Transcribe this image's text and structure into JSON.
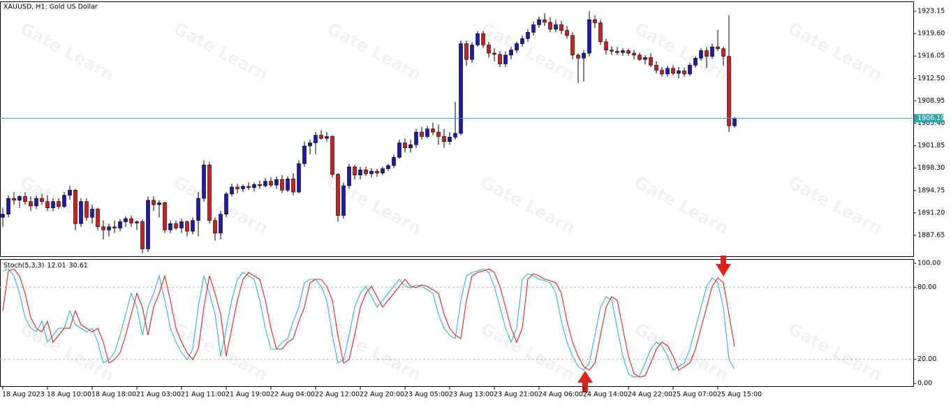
{
  "chart_data": [
    {
      "type": "candlestick",
      "title": "XAUUSD, H1:  Gold US Dollar",
      "watermark": "Gate Learn",
      "categories": [
        "18 Aug 2023",
        null,
        null,
        null,
        null,
        null,
        null,
        null,
        "18 Aug 10:00",
        null,
        null,
        null,
        null,
        null,
        null,
        null,
        "18 Aug 18:00",
        null,
        null,
        null,
        null,
        null,
        null,
        null,
        "21 Aug 03:00",
        null,
        null,
        null,
        null,
        null,
        null,
        null,
        "21 Aug 11:00",
        null,
        null,
        null,
        null,
        null,
        null,
        null,
        "21 Aug 19:00",
        null,
        null,
        null,
        null,
        null,
        null,
        null,
        "22 Aug 04:00",
        null,
        null,
        null,
        null,
        null,
        null,
        null,
        "22 Aug 12:00",
        null,
        null,
        null,
        null,
        null,
        null,
        null,
        "22 Aug 20:00",
        null,
        null,
        null,
        null,
        null,
        null,
        null,
        "23 Aug 05:00",
        null,
        null,
        null,
        null,
        null,
        null,
        null,
        "23 Aug 13:00",
        null,
        null,
        null,
        null,
        null,
        null,
        null,
        "23 Aug 21:00",
        null,
        null,
        null,
        null,
        null,
        null,
        null,
        "24 Aug 06:00",
        null,
        null,
        null,
        null,
        null,
        null,
        null,
        "24 Aug 14:00",
        null,
        null,
        null,
        null,
        null,
        null,
        null,
        "24 Aug 22:00",
        null,
        null,
        null,
        null,
        null,
        null,
        null,
        "25 Aug 07:00",
        null,
        null,
        null,
        null,
        null,
        null,
        null,
        "25 Aug 15:00",
        null,
        null,
        null
      ],
      "open": [
        1890.5,
        1891,
        1893.5,
        1893.2,
        1893.8,
        1893,
        1892.3,
        1893.5,
        1893,
        1892,
        1893,
        1892.2,
        1894,
        1894.8,
        1889.5,
        1893,
        1890.5,
        1891.8,
        1889,
        1888.5,
        1889,
        1888.8,
        1889.8,
        1890.3,
        1889.6,
        1889.8,
        1885.5,
        1893.2,
        1892.5,
        1892.8,
        1888.5,
        1889.5,
        1888.8,
        1889.8,
        1888.3,
        1890,
        1893.5,
        1898.8,
        1890,
        1888,
        1891,
        1894.2,
        1895.3,
        1895,
        1895.4,
        1895.2,
        1895.7,
        1895.5,
        1896.2,
        1895.6,
        1896.5,
        1894.8,
        1896.6,
        1894.5,
        1899,
        1901.8,
        1902.3,
        1903.5,
        1903,
        1903.3,
        1897.3,
        1890.8,
        1895.5,
        1898.5,
        1897.2,
        1898,
        1897.4,
        1897.8,
        1897.5,
        1898.2,
        1898.7,
        1900,
        1902.3,
        1901.5,
        1902,
        1904,
        1903.3,
        1904.5,
        1904,
        1903.3,
        1902.5,
        1903.2,
        1903.8,
        1918,
        1915.5,
        1917.8,
        1919.6,
        1917.8,
        1916.5,
        1916.3,
        1914.8,
        1916.2,
        1917,
        1918,
        1918.8,
        1919.8,
        1921,
        1921.8,
        1921.4,
        1920.3,
        1921,
        1920.1,
        1919.3,
        1916.2,
        1915.7,
        1916.5,
        1921.8,
        1921.3,
        1918.3,
        1917,
        1916.8,
        1916.6,
        1916.9,
        1916.5,
        1916.2,
        1915.5,
        1915.8,
        1914.6,
        1913.8,
        1913.2,
        1914.1,
        1913.3,
        1913.7,
        1913.2,
        1914.6,
        1915.7,
        1916.9,
        1916,
        1917.5,
        1917.2,
        1916,
        1905
      ],
      "high": [
        1892,
        1894,
        1894.5,
        1894,
        1894.5,
        1893.8,
        1894,
        1894.2,
        1894,
        1893.5,
        1893.5,
        1894.5,
        1895.5,
        1895,
        1893.5,
        1893.5,
        1892.5,
        1892,
        1890,
        1889.5,
        1890,
        1890.2,
        1890.7,
        1890.8,
        1890,
        1890.2,
        1893.8,
        1893.8,
        1893.2,
        1893,
        1890,
        1890,
        1890.3,
        1890,
        1890.5,
        1894.5,
        1899.5,
        1899.3,
        1890.5,
        1891.5,
        1894.5,
        1895.8,
        1895.8,
        1895.7,
        1896,
        1896,
        1896.3,
        1896.7,
        1896.8,
        1897,
        1897.2,
        1897,
        1897.5,
        1899.5,
        1902.5,
        1902.8,
        1904,
        1904.3,
        1904,
        1903.5,
        1897.5,
        1896,
        1899,
        1898.8,
        1898.5,
        1898.5,
        1898.3,
        1898.2,
        1898.5,
        1899,
        1900.5,
        1902.8,
        1903,
        1902.8,
        1904.5,
        1904.8,
        1905,
        1905.5,
        1905.2,
        1904.5,
        1904,
        1908.8,
        1918.5,
        1918.5,
        1918.3,
        1920,
        1920,
        1918.3,
        1917.3,
        1916.8,
        1916.8,
        1917.5,
        1918.3,
        1919.3,
        1920.3,
        1921.5,
        1922.3,
        1922.8,
        1922.2,
        1921.8,
        1921.6,
        1920.8,
        1919.8,
        1916.5,
        1917,
        1923.2,
        1922.5,
        1921.8,
        1918.8,
        1917.6,
        1917.5,
        1917.3,
        1917.2,
        1917,
        1916.6,
        1916.2,
        1916.5,
        1915.2,
        1914.3,
        1914.5,
        1914.6,
        1914.3,
        1914.2,
        1915,
        1916,
        1917.3,
        1917.5,
        1918,
        1920.2,
        1917.5,
        1922.5,
        1906.4
      ],
      "low": [
        1889,
        1890.5,
        1892.5,
        1892,
        1892.5,
        1891.5,
        1891.8,
        1892.5,
        1891.5,
        1891.5,
        1891.8,
        1892,
        1893.3,
        1888.5,
        1889,
        1890,
        1889.5,
        1888.5,
        1887,
        1887.5,
        1888,
        1888.3,
        1889,
        1889,
        1888.5,
        1884.8,
        1885,
        1891.5,
        1890.5,
        1888,
        1888,
        1888.5,
        1888,
        1887.5,
        1887.8,
        1887.5,
        1893,
        1889.5,
        1886.8,
        1887,
        1890.5,
        1893.8,
        1894.3,
        1894.5,
        1894.8,
        1894.6,
        1895,
        1895.2,
        1895.3,
        1895,
        1894.3,
        1894.5,
        1894,
        1894.3,
        1898.5,
        1900.5,
        1900.5,
        1902.8,
        1902.5,
        1896.8,
        1889.8,
        1890.3,
        1895,
        1896.5,
        1896.5,
        1897,
        1896.8,
        1896.9,
        1897.2,
        1897.8,
        1898.3,
        1899.8,
        1900.8,
        1900.8,
        1901.5,
        1902.8,
        1903,
        1903.5,
        1902,
        1901.5,
        1902,
        1902.8,
        1903.5,
        1914.5,
        1915,
        1917.5,
        1917.3,
        1915.8,
        1915.2,
        1914.3,
        1914.3,
        1915.5,
        1916.5,
        1917.5,
        1918.3,
        1919.3,
        1920.5,
        1920.8,
        1919.8,
        1919.8,
        1919.5,
        1918.8,
        1915.5,
        1911.8,
        1912,
        1916,
        1920.5,
        1917.8,
        1916.3,
        1916.2,
        1916.2,
        1916.1,
        1916.1,
        1915.5,
        1915.3,
        1914.7,
        1914.3,
        1913.3,
        1912.8,
        1912.8,
        1913,
        1912.5,
        1912.8,
        1912.9,
        1914.2,
        1915.3,
        1914.2,
        1915.6,
        1916.8,
        1914.5,
        1904,
        1904.7
      ],
      "close": [
        1891,
        1893.5,
        1893.2,
        1893.8,
        1893,
        1892.3,
        1893.5,
        1893,
        1892,
        1893,
        1892.2,
        1894,
        1894.8,
        1889.5,
        1893,
        1890.5,
        1891.8,
        1889,
        1888.5,
        1889,
        1888.8,
        1889.8,
        1890.3,
        1889.6,
        1889.8,
        1885.5,
        1893.2,
        1892.5,
        1892.8,
        1888.5,
        1889.5,
        1888.8,
        1889.8,
        1888.3,
        1890,
        1893.5,
        1898.8,
        1890,
        1888,
        1891,
        1894.2,
        1895.3,
        1895,
        1895.4,
        1895.2,
        1895.7,
        1895.5,
        1896.2,
        1895.6,
        1896.5,
        1894.8,
        1896.6,
        1894.5,
        1899,
        1901.8,
        1902.3,
        1903.5,
        1903,
        1903.3,
        1897.3,
        1890.8,
        1895.5,
        1898.5,
        1897.2,
        1898,
        1897.4,
        1897.8,
        1897.5,
        1898.2,
        1898.7,
        1900,
        1902.3,
        1901.5,
        1902,
        1904,
        1903.3,
        1904.5,
        1904,
        1903.3,
        1902.5,
        1903.2,
        1903.8,
        1918,
        1915.5,
        1917.8,
        1919.6,
        1917.8,
        1916.5,
        1916.3,
        1914.8,
        1916.2,
        1917,
        1918,
        1918.8,
        1919.8,
        1921,
        1921.8,
        1921.4,
        1920.3,
        1921,
        1920.1,
        1919.3,
        1916.2,
        1915.7,
        1916.5,
        1921.8,
        1921.3,
        1918.3,
        1917,
        1916.8,
        1916.6,
        1916.9,
        1916.5,
        1916.2,
        1915.5,
        1915.8,
        1914.6,
        1913.8,
        1913.2,
        1914.1,
        1913.3,
        1913.7,
        1913.2,
        1914.6,
        1915.7,
        1916.9,
        1916,
        1917.5,
        1917.2,
        1916,
        1905,
        1906.19
      ],
      "up_color": "#1c1ca8",
      "down_color": "#cc1f1f",
      "outline_color": "#000000",
      "current_price": 1906.19,
      "current_price_color": "#2aa7a7",
      "ylim": [
        1884.33,
        1924.59
      ],
      "yticks": [
        1923.15,
        {
          "value": 1919.6,
          "label": "1919.60"
        },
        1916.05,
        {
          "value": 1912.5,
          "label": "1912.50"
        },
        1908.95,
        {
          "value": 1905.4,
          "label": "1905.40"
        },
        1901.85,
        {
          "value": 1898.3,
          "label": "1898.30"
        },
        1894.75,
        {
          "value": 1891.2,
          "label": "1891.20"
        },
        1887.65
      ]
    },
    {
      "type": "line",
      "title": "Stoch(5,3,3)",
      "series": [
        {
          "color": "#36b4c6",
          "values": [
            93.6,
            95.3,
            89.5,
            75.0,
            54.7,
            45.9,
            43.0,
            51.7,
            34.3,
            40.1,
            45.9,
            45.9,
            60.5,
            48.8,
            45.9,
            43.0,
            45.9,
            34.3,
            16.9,
            19.8,
            25.6,
            40.1,
            57.6,
            75.0,
            63.4,
            40.1,
            63.4,
            75.0,
            89.5,
            69.2,
            45.9,
            34.3,
            25.6,
            19.8,
            28.5,
            63.4,
            89.5,
            75.0,
            57.6,
            22.7,
            45.9,
            69.2,
            86.6,
            92.4,
            89.5,
            86.6,
            69.2,
            45.9,
            28.5,
            28.5,
            34.3,
            37.2,
            51.7,
            63.4,
            83.7,
            86.6,
            86.6,
            80.8,
            69.2,
            40.1,
            16.9,
            19.8,
            40.1,
            63.4,
            75.0,
            80.8,
            72.1,
            63.4,
            69.2,
            75.0,
            80.8,
            86.6,
            80.8,
            79.7,
            82.0,
            80.8,
            77.9,
            75.0,
            57.6,
            45.9,
            40.1,
            37.2,
            69.2,
            89.5,
            92.4,
            93.6,
            95.3,
            92.4,
            80.8,
            63.4,
            45.9,
            34.3,
            45.9,
            86.6,
            91.3,
            89.5,
            86.6,
            85.5,
            83.7,
            75.0,
            51.7,
            34.3,
            22.7,
            14.0,
            11.0,
            16.9,
            40.1,
            63.4,
            72.1,
            69.2,
            45.9,
            22.7,
            8.1,
            5.2,
            6.4,
            16.9,
            28.5,
            34.3,
            31.4,
            22.7,
            11.0,
            14.0,
            16.9,
            28.5,
            45.9,
            63.4,
            80.8,
            87.8,
            83.7,
            63.4,
            19.8,
            12.01
          ]
        },
        {
          "color": "#e0241c",
          "values": [
            60.5,
            93.6,
            95.3,
            89.5,
            75.0,
            54.7,
            45.9,
            43.0,
            51.7,
            34.3,
            40.1,
            45.9,
            45.9,
            60.5,
            48.8,
            45.9,
            43.0,
            45.9,
            34.3,
            16.9,
            19.8,
            25.6,
            40.1,
            57.6,
            75.0,
            63.4,
            40.1,
            63.4,
            75.0,
            89.5,
            69.2,
            45.9,
            34.3,
            25.6,
            19.8,
            28.5,
            63.4,
            89.5,
            75.0,
            57.6,
            22.7,
            45.9,
            69.2,
            86.6,
            92.4,
            89.5,
            86.6,
            69.2,
            45.9,
            28.5,
            28.5,
            34.3,
            37.2,
            51.7,
            63.4,
            83.7,
            86.6,
            86.6,
            80.8,
            69.2,
            40.1,
            16.9,
            19.8,
            40.1,
            63.4,
            75.0,
            80.8,
            72.1,
            63.4,
            69.2,
            75.0,
            80.8,
            86.6,
            80.8,
            79.7,
            82.0,
            80.8,
            77.9,
            75.0,
            57.6,
            45.9,
            40.1,
            37.2,
            69.2,
            89.5,
            92.4,
            93.6,
            95.3,
            92.4,
            80.8,
            63.4,
            45.9,
            34.3,
            45.9,
            86.6,
            91.3,
            89.5,
            86.6,
            85.5,
            83.7,
            75.0,
            51.7,
            34.3,
            22.7,
            14.0,
            11.0,
            16.9,
            40.1,
            63.4,
            72.1,
            69.2,
            45.9,
            22.7,
            8.1,
            5.2,
            6.4,
            16.9,
            28.5,
            34.3,
            31.4,
            22.7,
            11.0,
            14.0,
            16.9,
            28.5,
            45.9,
            63.4,
            80.8,
            87.8,
            83.7,
            57.6,
            30.61
          ]
        }
      ],
      "levels": [
        80,
        20
      ],
      "ylim": [
        -2.3,
        102.9
      ],
      "yticks": [
        {
          "value": 100,
          "label": "100.00"
        },
        {
          "value": 80,
          "label": "80.00"
        },
        {
          "value": 20,
          "label": "20.00"
        },
        {
          "value": 0,
          "label": "0.00"
        }
      ]
    }
  ]
}
